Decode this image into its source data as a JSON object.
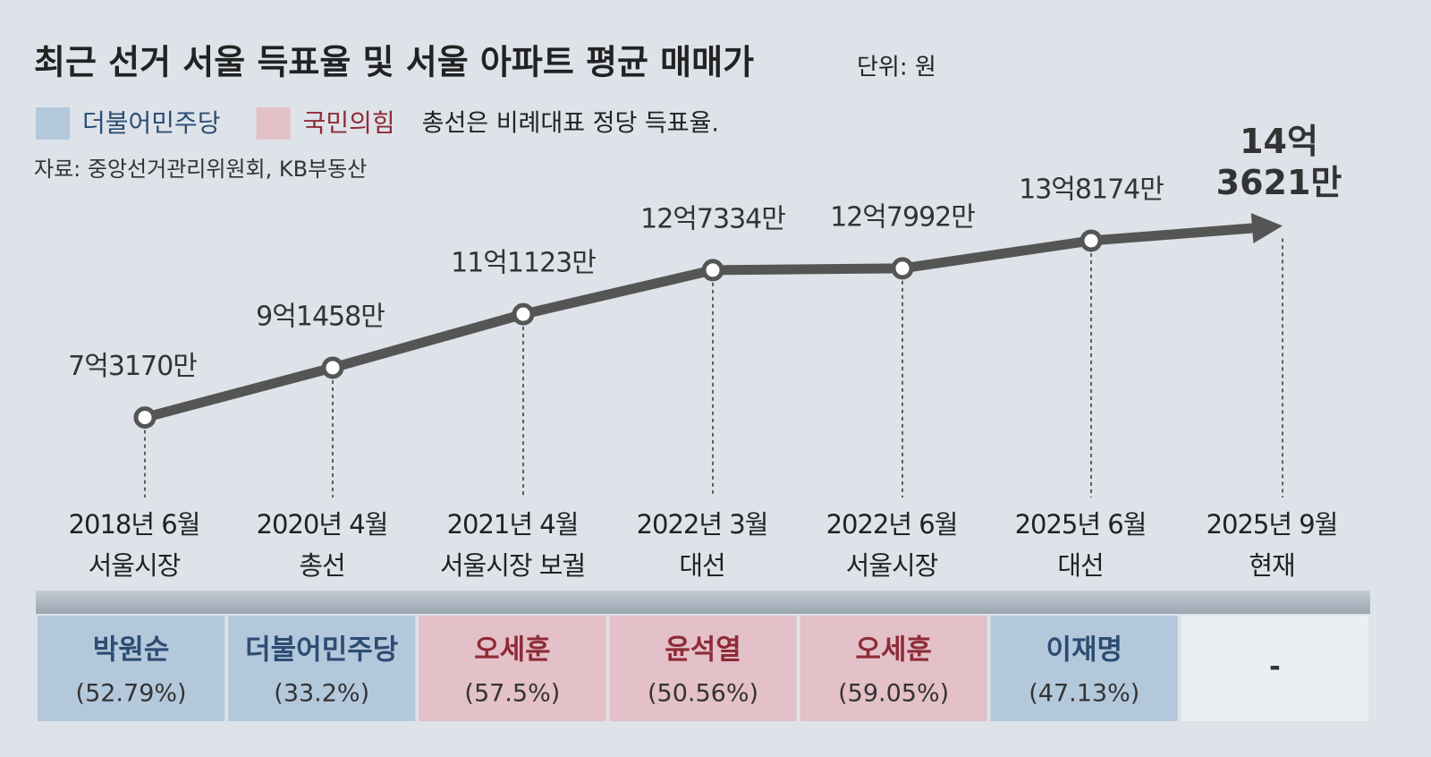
{
  "chart_data": {
    "type": "line",
    "title": "최근 선거 서울 득표율 및 서울 아파트 평균 매매가",
    "unit": "단위: 원",
    "note": "총선은 비례대표 정당 득표율.",
    "source": "자료: 중앙선거관리위원회, KB부동산",
    "legend": [
      {
        "name": "더불어민주당",
        "color": "#b4c8dc",
        "text_color": "#2c4c72"
      },
      {
        "name": "국민의힘",
        "color": "#e4c0c8",
        "text_color": "#8e2b37"
      }
    ],
    "categories": [
      "2018년 6월",
      "2020년 4월",
      "2021년 4월",
      "2022년 3월",
      "2022년 6월",
      "2025년 6월",
      "2025년 9월"
    ],
    "events": [
      "서울시장",
      "총선",
      "서울시장 보궐",
      "대선",
      "서울시장",
      "대선",
      "현재"
    ],
    "series": [
      {
        "name": "서울 아파트 평균 매매가",
        "color": "#555555",
        "values": [
          731700000,
          914580000,
          1111230000,
          1273340000,
          1279920000,
          1381740000,
          1436210000
        ],
        "value_labels": [
          "7억3170만",
          "9억1458만",
          "11억1123만",
          "12억7334만",
          "12억7992만",
          "13억8174만",
          "14억\n3621만"
        ]
      }
    ],
    "ylim": [
      500000000,
      1500000000
    ],
    "results": [
      {
        "name": "박원순",
        "share_label": "(52.79%)",
        "color": "#b4c8dc",
        "text_color": "#2c4c72"
      },
      {
        "name": "더불어민주당",
        "share_label": "(33.2%)",
        "color": "#b4c8dc",
        "text_color": "#2c4c72"
      },
      {
        "name": "오세훈",
        "share_label": "(57.5%)",
        "color": "#e4c0c8",
        "text_color": "#8e2b37"
      },
      {
        "name": "윤석열",
        "share_label": "(50.56%)",
        "color": "#e4c0c8",
        "text_color": "#8e2b37"
      },
      {
        "name": "오세훈",
        "share_label": "(59.05%)",
        "color": "#e4c0c8",
        "text_color": "#8e2b37"
      },
      {
        "name": "이재명",
        "share_label": "(47.13%)",
        "color": "#b4c8dc",
        "text_color": "#2c4c72"
      },
      {
        "name": "-",
        "color": "#eceff2",
        "text_color": "#333333"
      }
    ]
  }
}
